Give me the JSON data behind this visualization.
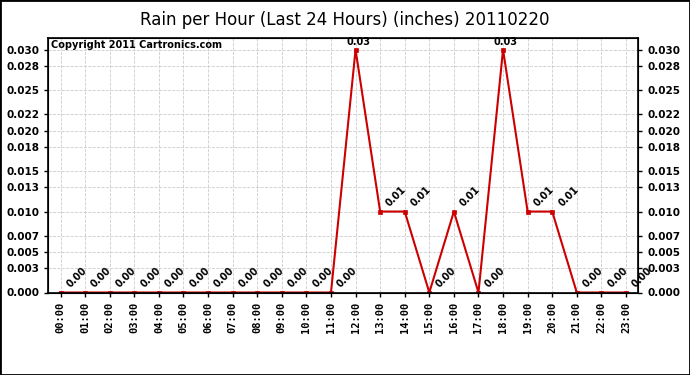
{
  "title": "Rain per Hour (Last 24 Hours) (inches) 20110220",
  "copyright": "Copyright 2011 Cartronics.com",
  "hours": [
    0,
    1,
    2,
    3,
    4,
    5,
    6,
    7,
    8,
    9,
    10,
    11,
    12,
    13,
    14,
    15,
    16,
    17,
    18,
    19,
    20,
    21,
    22,
    23
  ],
  "values": [
    0.0,
    0.0,
    0.0,
    0.0,
    0.0,
    0.0,
    0.0,
    0.0,
    0.0,
    0.0,
    0.0,
    0.0,
    0.03,
    0.01,
    0.01,
    0.0,
    0.01,
    0.0,
    0.03,
    0.01,
    0.01,
    0.0,
    0.0,
    0.0
  ],
  "line_color": "#cc0000",
  "marker": "s",
  "marker_size": 3,
  "background_color": "#ffffff",
  "grid_color": "#cccccc",
  "ylim": [
    0.0,
    0.0315
  ],
  "yticks": [
    0.0,
    0.003,
    0.005,
    0.007,
    0.01,
    0.013,
    0.015,
    0.018,
    0.02,
    0.022,
    0.025,
    0.028,
    0.03
  ],
  "title_fontsize": 12,
  "tick_fontsize": 7.5,
  "copyright_fontsize": 7,
  "annotation_fontsize": 7
}
